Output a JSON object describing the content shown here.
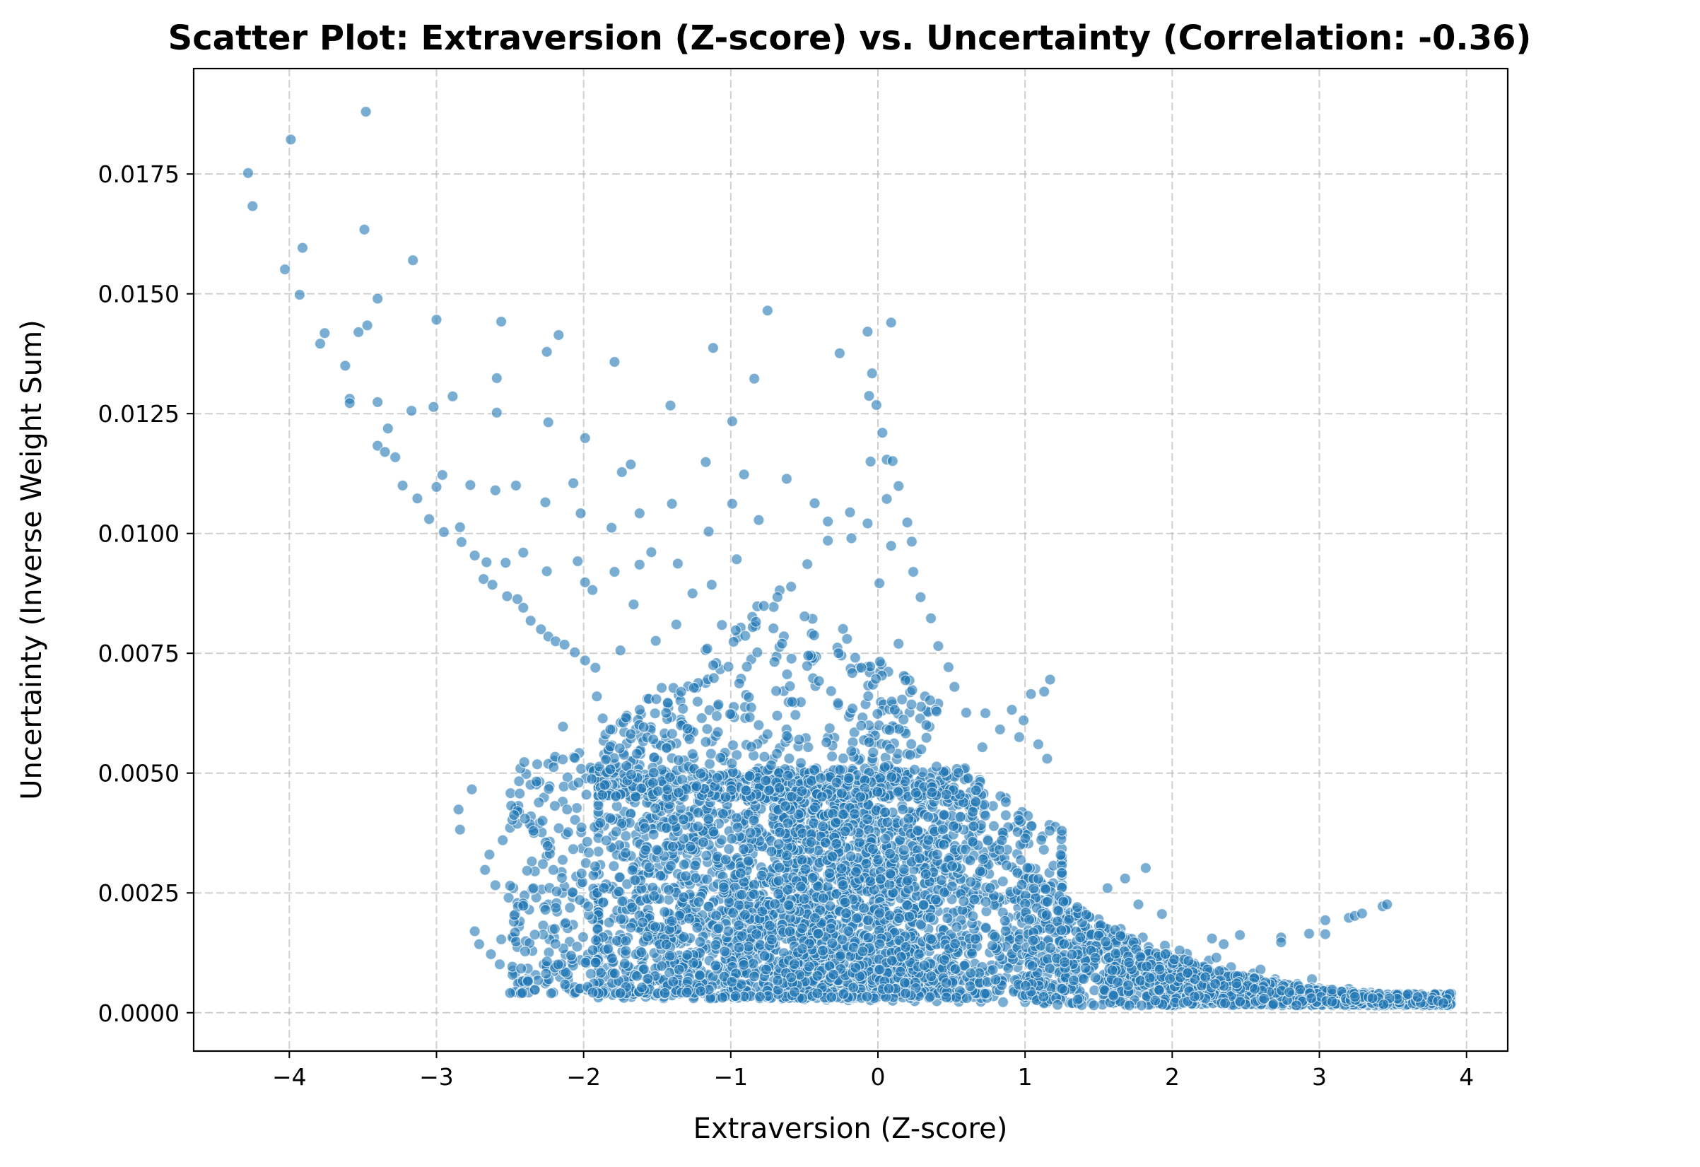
{
  "chart_data": {
    "type": "scatter",
    "title": "Scatter Plot: Extraversion (Z-score) vs. Uncertainty (Correlation: -0.36)",
    "xlabel": "Extraversion (Z-score)",
    "ylabel": "Uncertainty (Inverse Weight Sum)",
    "xlim": [
      -4.65,
      4.28
    ],
    "ylim": [
      -0.0008,
      0.0197
    ],
    "xticks": [
      -4,
      -3,
      -2,
      -1,
      0,
      1,
      2,
      3,
      4
    ],
    "xtick_labels": [
      "−4",
      "−3",
      "−2",
      "−1",
      "0",
      "1",
      "2",
      "3",
      "4"
    ],
    "yticks": [
      0.0,
      0.0025,
      0.005,
      0.0075,
      0.01,
      0.0125,
      0.015,
      0.0175
    ],
    "ytick_labels": [
      "0.0000",
      "0.0025",
      "0.0050",
      "0.0075",
      "0.0100",
      "0.0125",
      "0.0150",
      "0.0175"
    ],
    "grid": true,
    "color": "#1f77b4",
    "points": [
      [
        -4.28,
        0.01752
      ],
      [
        -4.25,
        0.01683
      ],
      [
        -3.99,
        0.01822
      ],
      [
        -4.03,
        0.01551
      ],
      [
        -3.91,
        0.01596
      ],
      [
        -3.93,
        0.01498
      ],
      [
        -3.48,
        0.0188
      ],
      [
        -3.49,
        0.01634
      ],
      [
        -3.16,
        0.0157
      ],
      [
        -3.76,
        0.01418
      ],
      [
        -3.79,
        0.01396
      ],
      [
        -3.62,
        0.0135
      ],
      [
        -3.53,
        0.0142
      ],
      [
        -3.47,
        0.01434
      ],
      [
        -3.4,
        0.0149
      ],
      [
        -3.0,
        0.01446
      ],
      [
        -2.56,
        0.01442
      ],
      [
        -2.25,
        0.01379
      ],
      [
        -2.17,
        0.01414
      ],
      [
        -1.79,
        0.01358
      ],
      [
        -1.12,
        0.01387
      ],
      [
        -0.75,
        0.01465
      ],
      [
        -0.07,
        0.01421
      ],
      [
        0.09,
        0.0144
      ],
      [
        -0.26,
        0.01376
      ],
      [
        -0.04,
        0.01334
      ],
      [
        -0.84,
        0.01323
      ],
      [
        -2.59,
        0.01324
      ],
      [
        -3.59,
        0.01281
      ],
      [
        -3.59,
        0.01272
      ],
      [
        -3.4,
        0.01274
      ],
      [
        -3.17,
        0.01256
      ],
      [
        -3.02,
        0.01264
      ],
      [
        -2.89,
        0.01286
      ],
      [
        -2.59,
        0.01252
      ],
      [
        -2.24,
        0.01232
      ],
      [
        -1.41,
        0.01267
      ],
      [
        -0.99,
        0.01234
      ],
      [
        -0.06,
        0.01287
      ],
      [
        -0.01,
        0.01268
      ],
      [
        0.03,
        0.0121
      ],
      [
        -3.33,
        0.01219
      ],
      [
        -3.4,
        0.01183
      ],
      [
        -3.35,
        0.0117
      ],
      [
        -3.28,
        0.01159
      ],
      [
        -1.99,
        0.01199
      ],
      [
        -1.17,
        0.01149
      ],
      [
        -1.74,
        0.01128
      ],
      [
        -1.68,
        0.01144
      ],
      [
        -0.91,
        0.01123
      ],
      [
        -0.62,
        0.01114
      ],
      [
        -0.05,
        0.0115
      ],
      [
        0.06,
        0.01154
      ],
      [
        0.1,
        0.01151
      ],
      [
        -3.23,
        0.011
      ],
      [
        -3.13,
        0.01073
      ],
      [
        -3.0,
        0.01097
      ],
      [
        -2.96,
        0.01122
      ],
      [
        -2.77,
        0.01101
      ],
      [
        -2.6,
        0.0109
      ],
      [
        -2.46,
        0.011
      ],
      [
        -2.26,
        0.01065
      ],
      [
        -2.07,
        0.01105
      ],
      [
        -1.4,
        0.01062
      ],
      [
        -0.99,
        0.01062
      ],
      [
        -0.43,
        0.01063
      ],
      [
        -0.19,
        0.01044
      ],
      [
        0.06,
        0.01072
      ],
      [
        0.14,
        0.01099
      ],
      [
        -3.05,
        0.0103
      ],
      [
        -2.95,
        0.01003
      ],
      [
        -2.84,
        0.01013
      ],
      [
        -2.83,
        0.00982
      ],
      [
        -2.74,
        0.00954
      ],
      [
        -2.66,
        0.0094
      ],
      [
        -2.53,
        0.00939
      ],
      [
        -2.41,
        0.0096
      ],
      [
        -2.02,
        0.01042
      ],
      [
        -1.81,
        0.01012
      ],
      [
        -1.62,
        0.01042
      ],
      [
        -1.15,
        0.01004
      ],
      [
        -0.81,
        0.01028
      ],
      [
        -0.34,
        0.01025
      ],
      [
        -0.07,
        0.01021
      ],
      [
        0.2,
        0.01023
      ],
      [
        0.23,
        0.00983
      ],
      [
        0.09,
        0.00974
      ],
      [
        -2.68,
        0.00905
      ],
      [
        -2.62,
        0.00893
      ],
      [
        -2.52,
        0.00869
      ],
      [
        -2.45,
        0.00863
      ],
      [
        -2.41,
        0.00845
      ],
      [
        -2.36,
        0.00818
      ],
      [
        -2.29,
        0.008
      ],
      [
        -2.24,
        0.00785
      ],
      [
        -2.19,
        0.00775
      ],
      [
        -2.13,
        0.00768
      ],
      [
        -2.06,
        0.00752
      ],
      [
        -1.99,
        0.00735
      ],
      [
        -1.92,
        0.0072
      ],
      [
        -2.25,
        0.00921
      ],
      [
        -2.04,
        0.00942
      ],
      [
        -1.99,
        0.00898
      ],
      [
        -1.94,
        0.00882
      ],
      [
        -1.79,
        0.0092
      ],
      [
        -1.62,
        0.00935
      ],
      [
        -1.54,
        0.00961
      ],
      [
        -1.36,
        0.00937
      ],
      [
        -1.26,
        0.00875
      ],
      [
        -1.13,
        0.00893
      ],
      [
        -0.96,
        0.00946
      ],
      [
        -0.82,
        0.00848
      ],
      [
        -0.59,
        0.00889
      ],
      [
        -0.48,
        0.00936
      ],
      [
        -0.34,
        0.00985
      ],
      [
        -0.18,
        0.0099
      ],
      [
        0.01,
        0.00896
      ],
      [
        0.24,
        0.0092
      ],
      [
        0.29,
        0.00867
      ],
      [
        0.36,
        0.00823
      ],
      [
        -1.66,
        0.00852
      ],
      [
        -1.75,
        0.00756
      ],
      [
        -1.51,
        0.00776
      ],
      [
        -1.37,
        0.0081
      ],
      [
        -1.06,
        0.00809
      ],
      [
        -0.71,
        0.00802
      ],
      [
        -0.45,
        0.00791
      ],
      [
        -0.21,
        0.0078
      ],
      [
        0.14,
        0.0077
      ],
      [
        0.41,
        0.00765
      ],
      [
        0.48,
        0.00721
      ],
      [
        0.52,
        0.0068
      ],
      [
        0.41,
        0.00645
      ],
      [
        0.6,
        0.00626
      ],
      [
        0.73,
        0.00625
      ],
      [
        0.91,
        0.00632
      ],
      [
        0.99,
        0.0061
      ],
      [
        1.04,
        0.00665
      ],
      [
        1.13,
        0.0067
      ],
      [
        1.17,
        0.00695
      ],
      [
        0.83,
        0.00591
      ],
      [
        0.96,
        0.00575
      ],
      [
        1.09,
        0.0056
      ],
      [
        1.15,
        0.0053
      ],
      [
        0.71,
        0.00554
      ],
      [
        -0.42,
        0.00743
      ],
      [
        -0.07,
        0.00722
      ],
      [
        0.19,
        0.007
      ],
      [
        0.32,
        0.0066
      ],
      [
        -1.29,
        0.00681
      ],
      [
        -0.93,
        0.00697
      ],
      [
        -0.64,
        0.00671
      ],
      [
        -0.27,
        0.00642
      ],
      [
        -1.91,
        0.0066
      ],
      [
        -2.14,
        0.00597
      ],
      [
        -1.87,
        0.00614
      ],
      [
        -1.61,
        0.00623
      ],
      [
        -2.39,
        0.00498
      ],
      [
        -2.3,
        0.00482
      ],
      [
        -2.2,
        0.00526
      ],
      [
        -2.11,
        0.00491
      ],
      [
        -2.03,
        0.00542
      ],
      [
        -1.95,
        0.00506
      ],
      [
        -1.73,
        0.00543
      ],
      [
        -1.62,
        0.00517
      ],
      [
        -1.44,
        0.00571
      ],
      [
        -1.16,
        0.00592
      ],
      [
        -0.81,
        0.006
      ],
      [
        -0.49,
        0.00573
      ],
      [
        -0.16,
        0.00585
      ],
      [
        0.11,
        0.00562
      ],
      [
        -2.76,
        0.00466
      ],
      [
        -2.85,
        0.00424
      ],
      [
        -2.84,
        0.00382
      ],
      [
        -2.55,
        0.0036
      ],
      [
        -2.35,
        0.00386
      ],
      [
        -2.23,
        0.00357
      ],
      [
        -2.12,
        0.00372
      ],
      [
        -2.01,
        0.00343
      ],
      [
        -1.86,
        0.0039
      ],
      [
        -1.68,
        0.00416
      ],
      [
        -2.64,
        0.0033
      ],
      [
        -2.67,
        0.00298
      ],
      [
        -2.6,
        0.00266
      ],
      [
        -2.51,
        0.0024
      ],
      [
        -2.45,
        0.00229
      ],
      [
        -2.37,
        0.00215
      ],
      [
        -2.24,
        0.00226
      ],
      [
        -2.18,
        0.00211
      ],
      [
        -2.13,
        0.00185
      ],
      [
        -2.2,
        0.00157
      ],
      [
        -2.45,
        0.00137
      ],
      [
        -2.56,
        0.00153
      ],
      [
        -2.63,
        0.00122
      ],
      [
        -2.71,
        0.00143
      ],
      [
        -2.74,
        0.0017
      ],
      [
        -2.57,
        0.00101
      ],
      [
        -2.48,
        0.00088
      ],
      [
        -2.38,
        0.00072
      ],
      [
        -2.26,
        0.00061
      ],
      [
        -2.12,
        0.00054
      ],
      [
        -1.98,
        0.00048
      ],
      [
        -1.85,
        0.00043
      ],
      [
        -1.7,
        0.00041
      ],
      [
        -1.55,
        0.00038
      ],
      [
        -1.4,
        0.00036
      ],
      [
        -1.25,
        0.00034
      ],
      [
        -1.1,
        0.00032
      ],
      [
        -0.95,
        0.00031
      ],
      [
        -0.8,
        0.0003
      ],
      [
        -0.65,
        0.00029
      ],
      [
        -0.5,
        0.00028
      ],
      [
        -0.35,
        0.00027
      ],
      [
        -0.2,
        0.00026
      ],
      [
        -0.05,
        0.00026
      ],
      [
        0.1,
        0.00025
      ],
      [
        0.25,
        0.00024
      ],
      [
        0.4,
        0.00024
      ],
      [
        0.55,
        0.00023
      ],
      [
        0.7,
        0.00023
      ],
      [
        0.85,
        0.00022
      ],
      [
        1.0,
        0.00022
      ],
      [
        1.15,
        0.00021
      ],
      [
        1.3,
        0.00021
      ],
      [
        1.45,
        0.0002
      ],
      [
        1.6,
        0.0002
      ],
      [
        1.75,
        0.00019
      ],
      [
        1.9,
        0.00019
      ],
      [
        2.05,
        0.00018
      ],
      [
        2.2,
        0.00018
      ],
      [
        2.35,
        0.00018
      ],
      [
        2.5,
        0.00017
      ],
      [
        2.65,
        0.00017
      ],
      [
        2.8,
        0.00017
      ],
      [
        2.95,
        0.00017
      ],
      [
        3.1,
        0.00017
      ],
      [
        3.25,
        0.00017
      ],
      [
        3.4,
        0.00017
      ],
      [
        3.55,
        0.00017
      ],
      [
        3.7,
        0.00017
      ],
      [
        3.85,
        0.00018
      ],
      [
        3.88,
        0.0002
      ],
      [
        3.75,
        0.00022
      ],
      [
        3.6,
        0.00026
      ],
      [
        3.45,
        0.0003
      ],
      [
        3.3,
        0.00036
      ],
      [
        3.15,
        0.00043
      ],
      [
        3.0,
        0.00051
      ],
      [
        2.85,
        0.0006
      ],
      [
        2.7,
        0.0007
      ],
      [
        2.55,
        0.00082
      ],
      [
        2.4,
        0.00095
      ],
      [
        2.25,
        0.00109
      ],
      [
        2.1,
        0.00123
      ],
      [
        1.95,
        0.0014
      ],
      [
        1.8,
        0.00157
      ],
      [
        1.65,
        0.00175
      ],
      [
        1.5,
        0.00195
      ],
      [
        1.35,
        0.00216
      ],
      [
        1.2,
        0.00238
      ],
      [
        1.77,
        0.00226
      ],
      [
        1.93,
        0.00206
      ],
      [
        1.82,
        0.00302
      ],
      [
        1.68,
        0.0028
      ],
      [
        1.56,
        0.0026
      ],
      [
        2.27,
        0.00155
      ],
      [
        2.35,
        0.00143
      ],
      [
        2.46,
        0.00162
      ],
      [
        2.74,
        0.00157
      ],
      [
        2.74,
        0.00147
      ],
      [
        2.93,
        0.00165
      ],
      [
        3.04,
        0.00193
      ],
      [
        3.04,
        0.00164
      ],
      [
        3.2,
        0.00198
      ],
      [
        3.24,
        0.00202
      ],
      [
        3.29,
        0.00207
      ],
      [
        3.43,
        0.00222
      ],
      [
        3.46,
        0.00226
      ],
      [
        3.35,
        0.00042
      ],
      [
        3.2,
        0.0005
      ],
      [
        2.95,
        0.0007
      ],
      [
        2.6,
        0.0009
      ],
      [
        2.3,
        0.00115
      ],
      [
        2.05,
        0.0013
      ]
    ]
  }
}
